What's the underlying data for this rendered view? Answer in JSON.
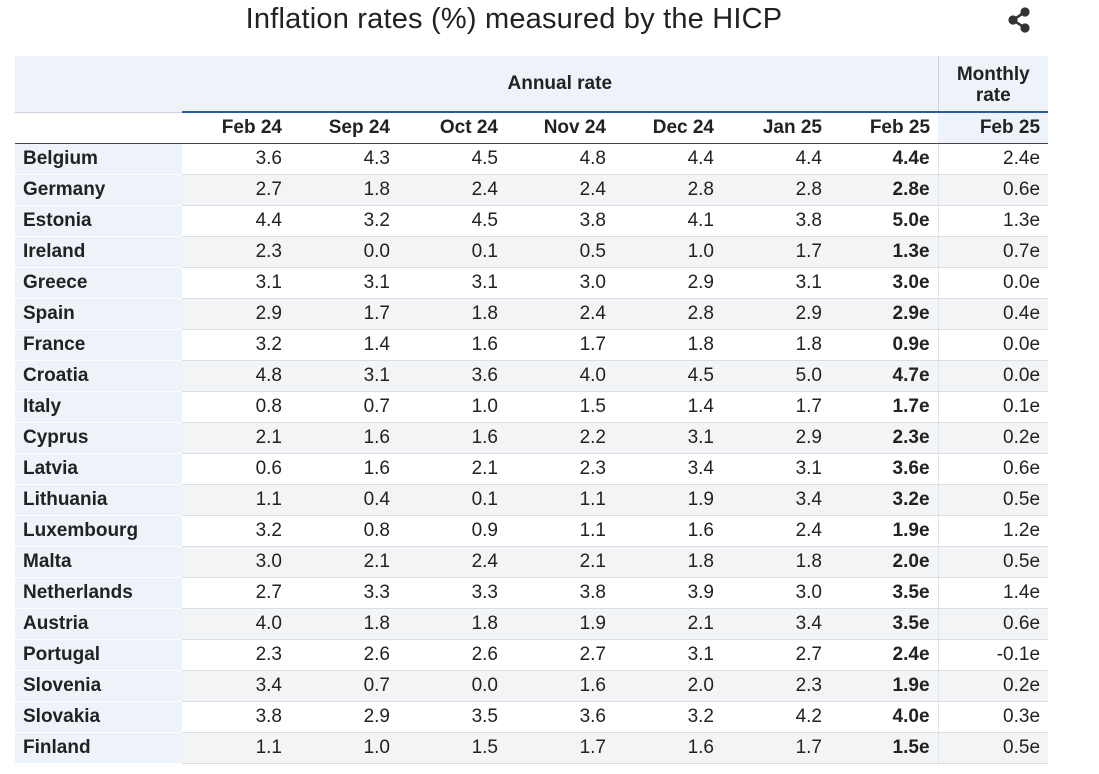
{
  "title": "Inflation rates (%) measured by the HICP",
  "share_icon": "share-icon",
  "chart_data": {
    "type": "table",
    "title": "Inflation rates (%) measured by the HICP",
    "group_headers": {
      "annual": "Annual rate",
      "monthly_line1": "Monthly",
      "monthly_line2": "rate"
    },
    "columns": [
      "Feb 24",
      "Sep 24",
      "Oct 24",
      "Nov 24",
      "Dec 24",
      "Jan 25",
      "Feb 25",
      "Feb 25"
    ],
    "rows": [
      {
        "country": "Belgium",
        "values": [
          "3.6",
          "4.3",
          "4.5",
          "4.8",
          "4.4",
          "4.4",
          "4.4e",
          "2.4e"
        ]
      },
      {
        "country": "Germany",
        "values": [
          "2.7",
          "1.8",
          "2.4",
          "2.4",
          "2.8",
          "2.8",
          "2.8e",
          "0.6e"
        ]
      },
      {
        "country": "Estonia",
        "values": [
          "4.4",
          "3.2",
          "4.5",
          "3.8",
          "4.1",
          "3.8",
          "5.0e",
          "1.3e"
        ]
      },
      {
        "country": "Ireland",
        "values": [
          "2.3",
          "0.0",
          "0.1",
          "0.5",
          "1.0",
          "1.7",
          "1.3e",
          "0.7e"
        ]
      },
      {
        "country": "Greece",
        "values": [
          "3.1",
          "3.1",
          "3.1",
          "3.0",
          "2.9",
          "3.1",
          "3.0e",
          "0.0e"
        ]
      },
      {
        "country": "Spain",
        "values": [
          "2.9",
          "1.7",
          "1.8",
          "2.4",
          "2.8",
          "2.9",
          "2.9e",
          "0.4e"
        ]
      },
      {
        "country": "France",
        "values": [
          "3.2",
          "1.4",
          "1.6",
          "1.7",
          "1.8",
          "1.8",
          "0.9e",
          "0.0e"
        ]
      },
      {
        "country": "Croatia",
        "values": [
          "4.8",
          "3.1",
          "3.6",
          "4.0",
          "4.5",
          "5.0",
          "4.7e",
          "0.0e"
        ]
      },
      {
        "country": "Italy",
        "values": [
          "0.8",
          "0.7",
          "1.0",
          "1.5",
          "1.4",
          "1.7",
          "1.7e",
          "0.1e"
        ]
      },
      {
        "country": "Cyprus",
        "values": [
          "2.1",
          "1.6",
          "1.6",
          "2.2",
          "3.1",
          "2.9",
          "2.3e",
          "0.2e"
        ]
      },
      {
        "country": "Latvia",
        "values": [
          "0.6",
          "1.6",
          "2.1",
          "2.3",
          "3.4",
          "3.1",
          "3.6e",
          "0.6e"
        ]
      },
      {
        "country": "Lithuania",
        "values": [
          "1.1",
          "0.4",
          "0.1",
          "1.1",
          "1.9",
          "3.4",
          "3.2e",
          "0.5e"
        ]
      },
      {
        "country": "Luxembourg",
        "values": [
          "3.2",
          "0.8",
          "0.9",
          "1.1",
          "1.6",
          "2.4",
          "1.9e",
          "1.2e"
        ]
      },
      {
        "country": "Malta",
        "values": [
          "3.0",
          "2.1",
          "2.4",
          "2.1",
          "1.8",
          "1.8",
          "2.0e",
          "0.5e"
        ]
      },
      {
        "country": "Netherlands",
        "values": [
          "2.7",
          "3.3",
          "3.3",
          "3.8",
          "3.9",
          "3.0",
          "3.5e",
          "1.4e"
        ]
      },
      {
        "country": "Austria",
        "values": [
          "4.0",
          "1.8",
          "1.8",
          "1.9",
          "2.1",
          "3.4",
          "3.5e",
          "0.6e"
        ]
      },
      {
        "country": "Portugal",
        "values": [
          "2.3",
          "2.6",
          "2.6",
          "2.7",
          "3.1",
          "2.7",
          "2.4e",
          "-0.1e"
        ]
      },
      {
        "country": "Slovenia",
        "values": [
          "3.4",
          "0.7",
          "0.0",
          "1.6",
          "2.0",
          "2.3",
          "1.9e",
          "0.2e"
        ]
      },
      {
        "country": "Slovakia",
        "values": [
          "3.8",
          "2.9",
          "3.5",
          "3.6",
          "3.2",
          "4.2",
          "4.0e",
          "0.3e"
        ]
      },
      {
        "country": "Finland",
        "values": [
          "1.1",
          "1.0",
          "1.5",
          "1.7",
          "1.6",
          "1.7",
          "1.5e",
          "0.5e"
        ]
      }
    ]
  }
}
